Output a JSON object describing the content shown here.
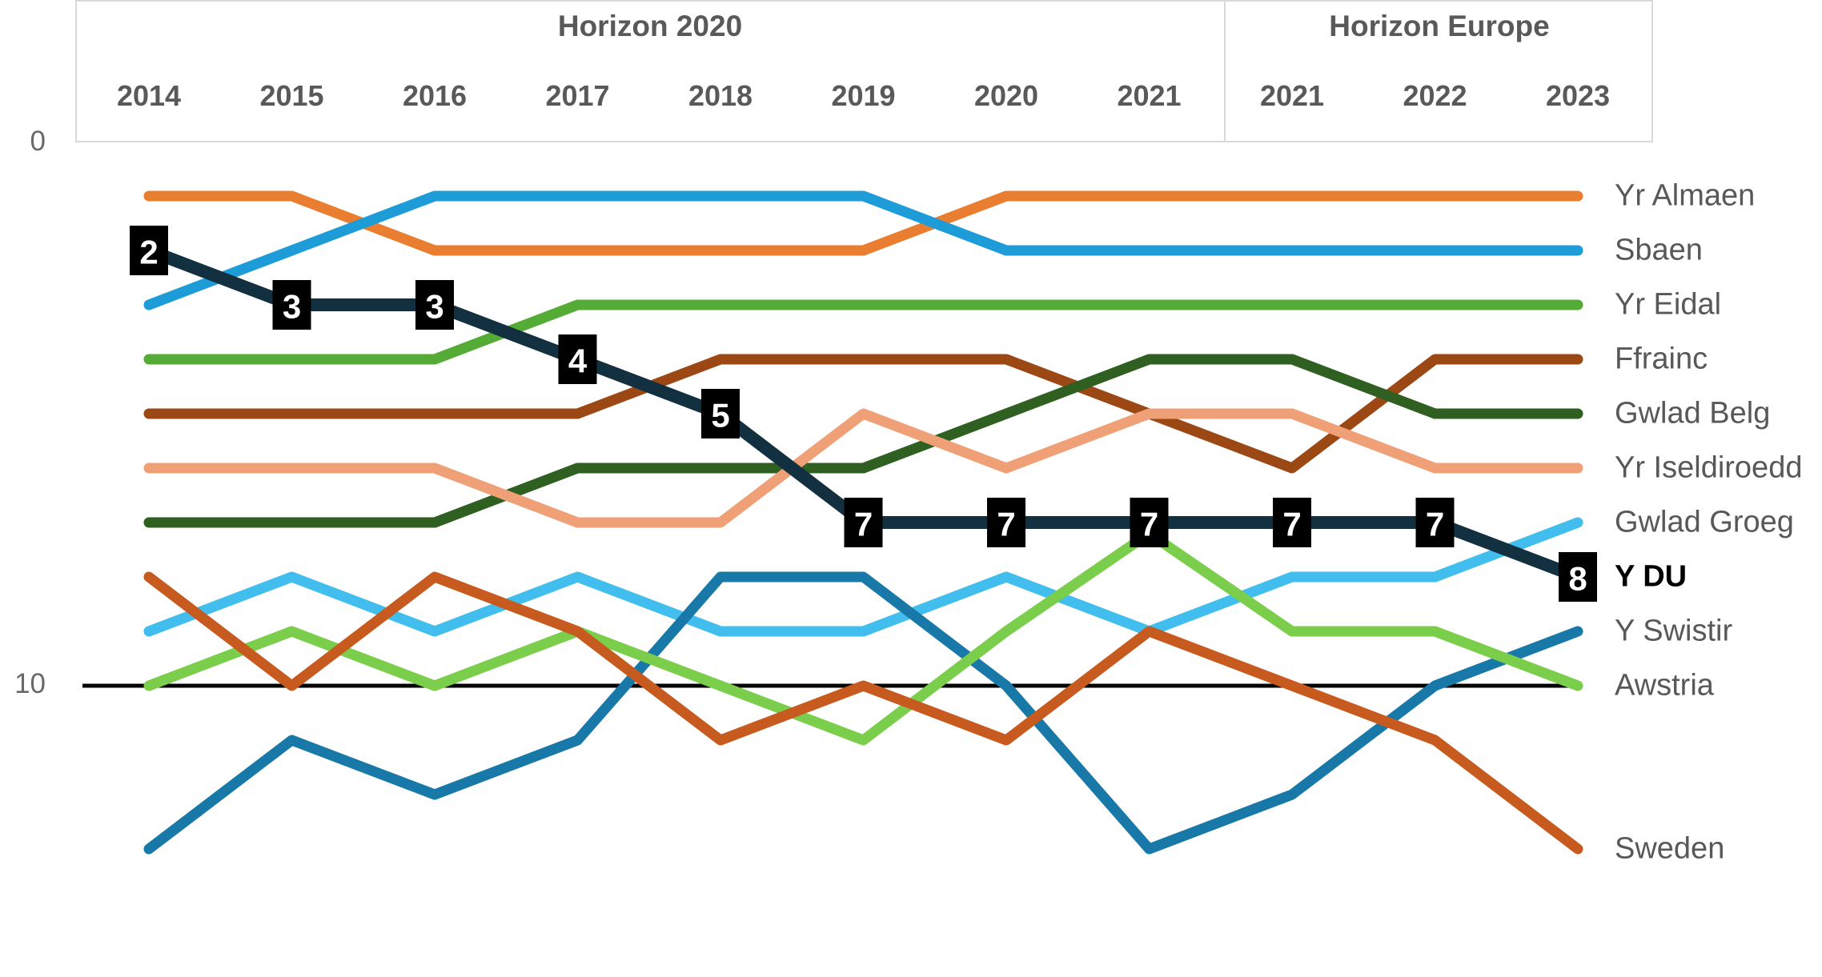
{
  "header": {
    "sections": [
      {
        "title": "Horizon 2020"
      },
      {
        "title": "Horizon Europe"
      }
    ]
  },
  "chart_data": {
    "type": "line",
    "subtype": "bump-rank-chart",
    "title": "",
    "x_labels": [
      "2014",
      "2015",
      "2016",
      "2017",
      "2018",
      "2019",
      "2020",
      "2021",
      "2021",
      "2022",
      "2023"
    ],
    "sections": [
      {
        "title": "Horizon 2020",
        "first_col": 0,
        "last_col": 7
      },
      {
        "title": "Horizon Europe",
        "first_col": 8,
        "last_col": 10
      }
    ],
    "y_axis": {
      "top_tick": "0",
      "bottom_tick": "10",
      "direction": "lower-rank-is-higher",
      "baseline_rank": 10
    },
    "grid": "off",
    "legend_position": "right-of-line-ends",
    "series": [
      {
        "name": "Yr Almaen",
        "color": "#E97E30",
        "ranks": [
          1,
          1,
          2,
          2,
          2,
          2,
          1,
          1,
          1,
          1,
          1
        ]
      },
      {
        "name": "Sbaen",
        "color": "#1E9CD8",
        "ranks": [
          3,
          2,
          1,
          1,
          1,
          1,
          2,
          2,
          2,
          2,
          2
        ]
      },
      {
        "name": "Yr Eidal",
        "color": "#54AC36",
        "ranks": [
          4,
          4,
          4,
          3,
          3,
          3,
          3,
          3,
          3,
          3,
          3
        ]
      },
      {
        "name": "Ffrainc",
        "color": "#9C4814",
        "ranks": [
          5,
          5,
          5,
          5,
          4,
          4,
          4,
          5,
          6,
          4,
          4
        ]
      },
      {
        "name": "Gwlad Belg",
        "color": "#2F5F21",
        "ranks": [
          7,
          7,
          7,
          6,
          6,
          6,
          5,
          4,
          4,
          5,
          5
        ]
      },
      {
        "name": "Yr Iseldiroedd",
        "color": "#F0A077",
        "ranks": [
          6,
          6,
          6,
          7,
          7,
          5,
          6,
          5,
          5,
          6,
          6
        ]
      },
      {
        "name": "Gwlad Groeg",
        "color": "#41BDEE",
        "ranks": [
          9,
          8,
          9,
          8,
          9,
          9,
          8,
          9,
          8,
          8,
          7
        ]
      },
      {
        "name": "Y Swistir",
        "color": "#1878A8",
        "ranks": [
          13,
          11,
          12,
          11,
          8,
          8,
          10,
          13,
          12,
          10,
          9
        ]
      },
      {
        "name": "Awstria",
        "color": "#7ACE4B",
        "ranks": [
          10,
          9,
          10,
          9,
          10,
          11,
          9,
          7.2,
          9,
          9,
          10
        ]
      },
      {
        "name": "Sweden",
        "color": "#C75A1E",
        "ranks": [
          8,
          10,
          8,
          9,
          11,
          10,
          11,
          9,
          10,
          11,
          13
        ]
      },
      {
        "name": "Y DU",
        "color": "#133040",
        "ranks": [
          2,
          3,
          3,
          4,
          5,
          7,
          7,
          7,
          7,
          7,
          8
        ],
        "highlight": true,
        "point_labels": [
          "2",
          "3",
          "3",
          "4",
          "5",
          "7",
          "7",
          "7",
          "7",
          "7",
          "8"
        ],
        "point_label_colors": {
          "box": "#000000",
          "text": "#ffffff"
        }
      }
    ]
  }
}
